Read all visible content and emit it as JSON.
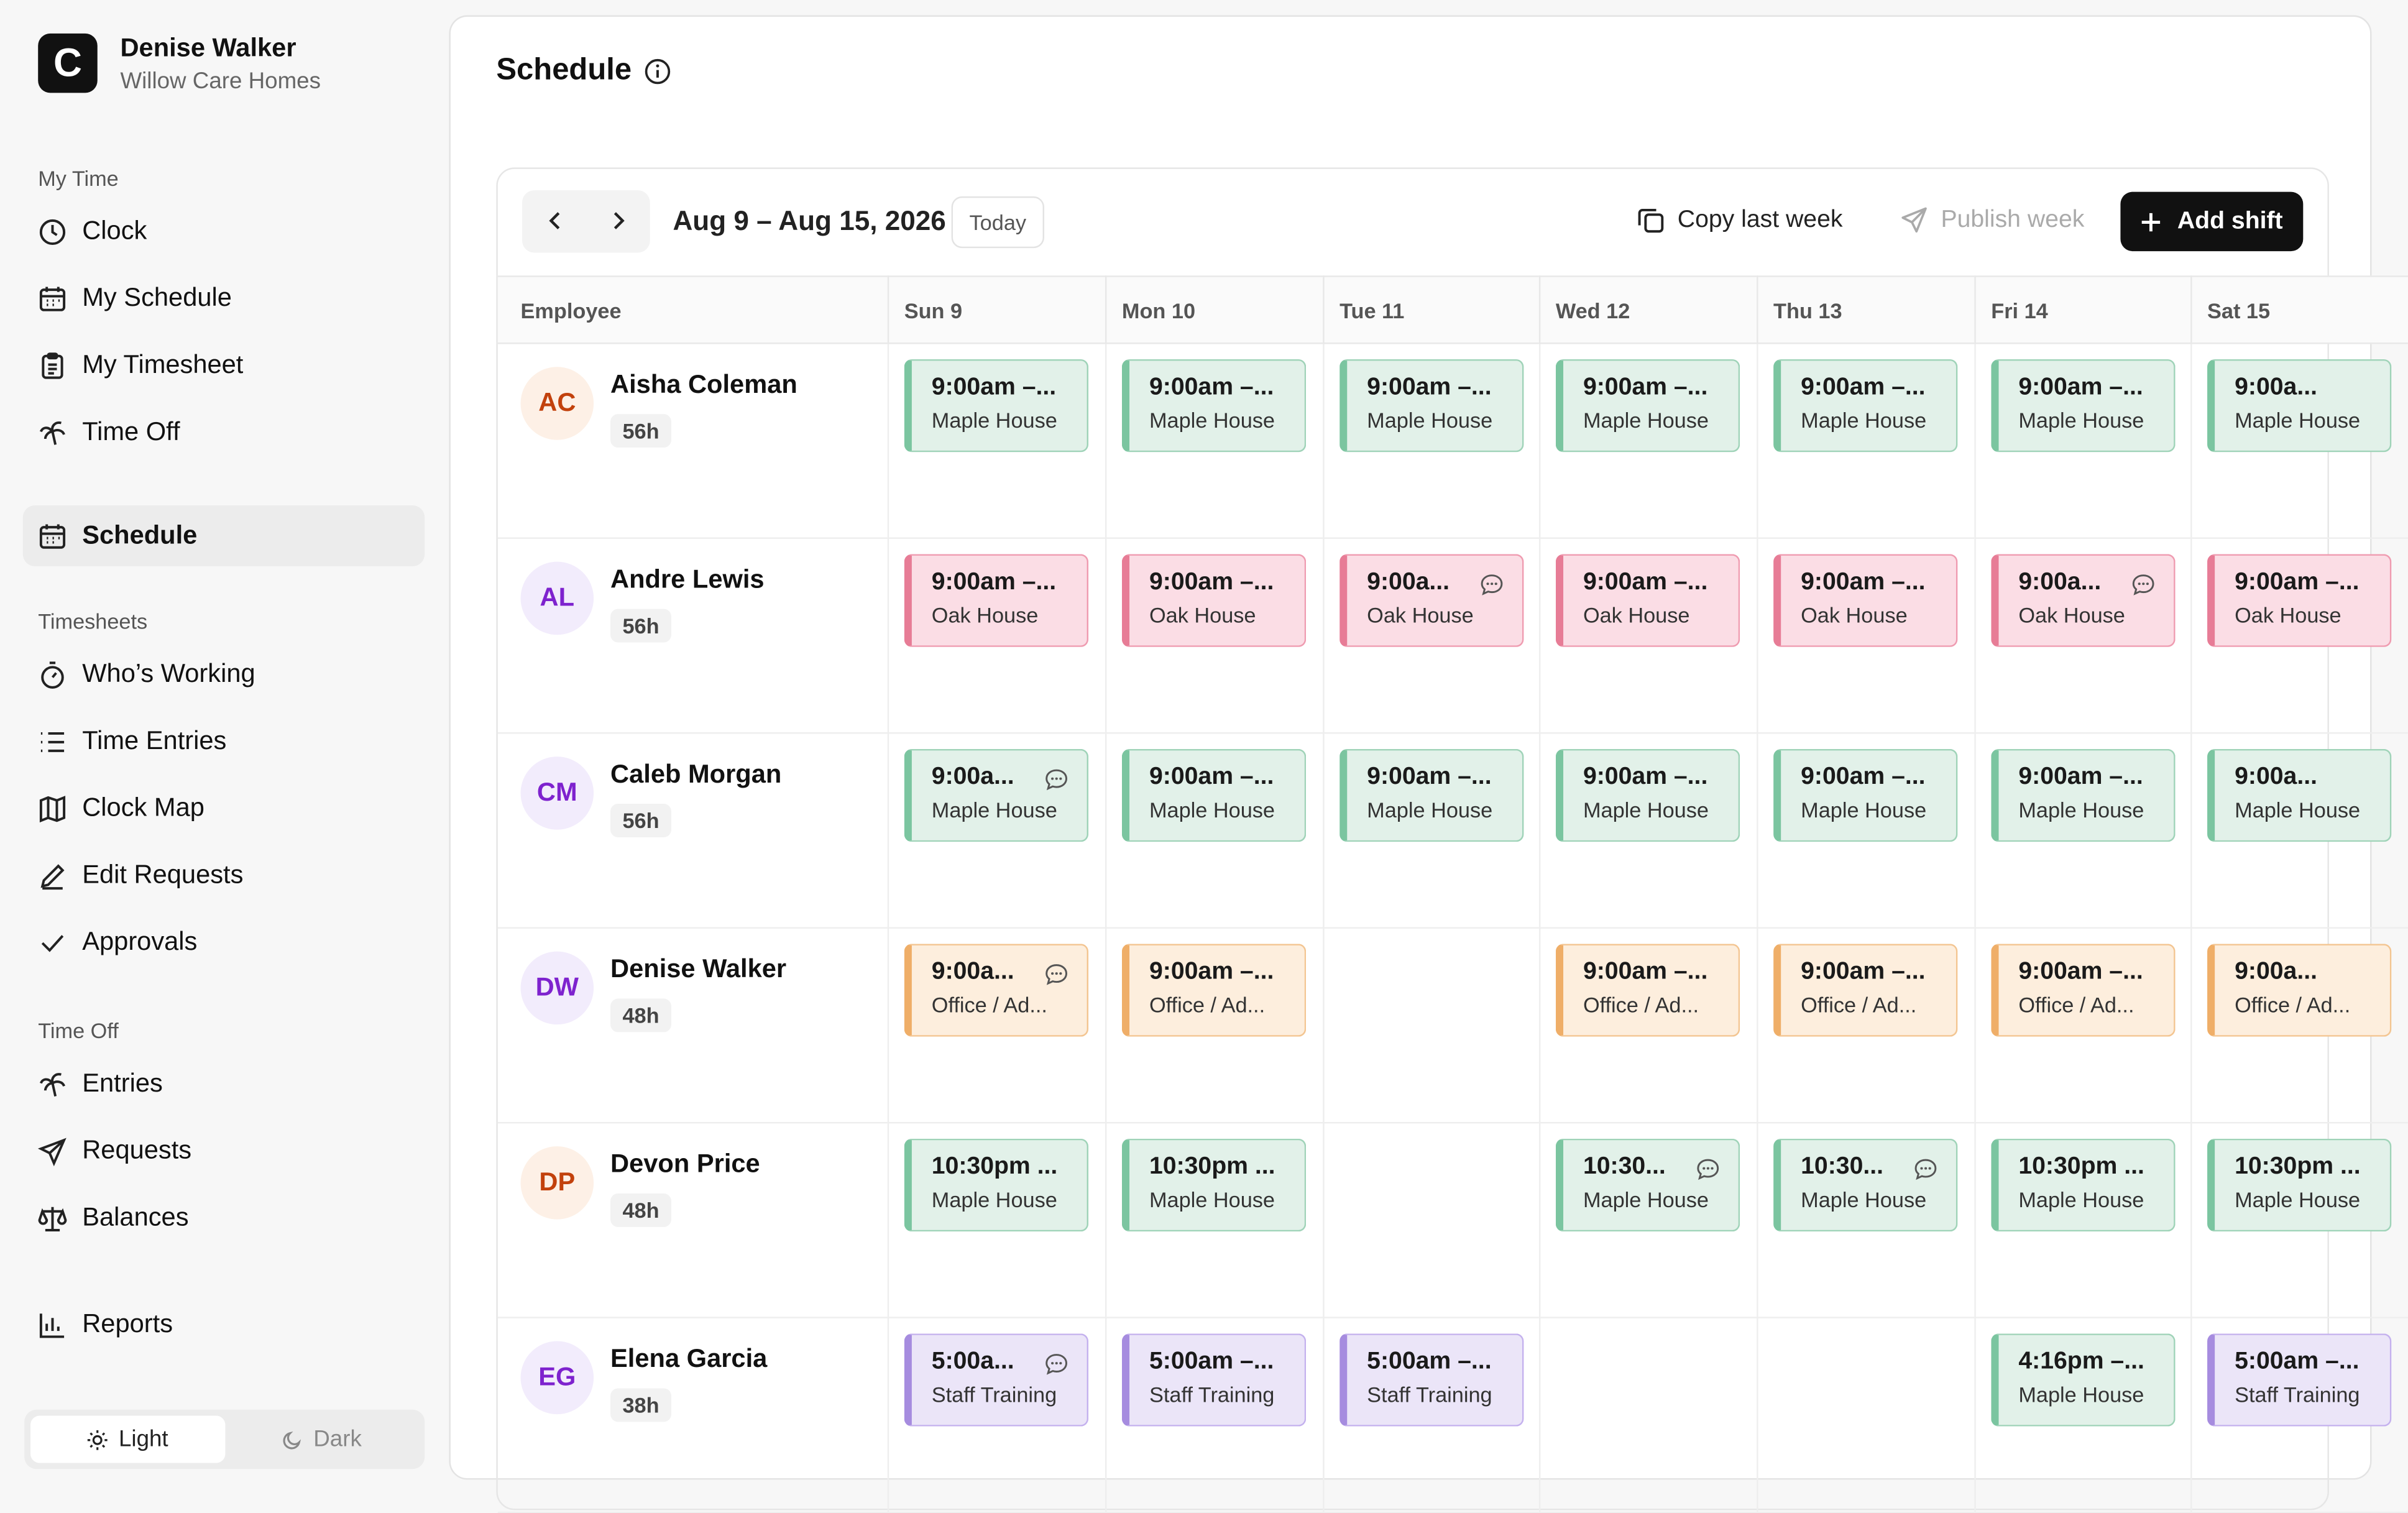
{
  "user": {
    "logo": "C",
    "name": "Denise Walker",
    "org": "Willow Care Homes"
  },
  "nav": [
    {
      "heading": "My Time",
      "items": [
        {
          "label": "Clock",
          "icon": "clock"
        },
        {
          "label": "My Schedule",
          "icon": "calendar"
        },
        {
          "label": "My Timesheet",
          "icon": "clipboard"
        },
        {
          "label": "Time Off",
          "icon": "palm"
        }
      ]
    },
    {
      "items": [
        {
          "label": "Schedule",
          "icon": "calendar",
          "active": true
        }
      ]
    },
    {
      "heading": "Timesheets",
      "items": [
        {
          "label": "Who’s Working",
          "icon": "stopwatch"
        },
        {
          "label": "Time Entries",
          "icon": "list"
        },
        {
          "label": "Clock Map",
          "icon": "map"
        },
        {
          "label": "Edit Requests",
          "icon": "pen"
        },
        {
          "label": "Approvals",
          "icon": "check"
        }
      ]
    },
    {
      "heading": "Time Off",
      "items": [
        {
          "label": "Entries",
          "icon": "palm"
        },
        {
          "label": "Requests",
          "icon": "send"
        },
        {
          "label": "Balances",
          "icon": "scale"
        }
      ]
    },
    {
      "items": [
        {
          "label": "Reports",
          "icon": "chart"
        }
      ]
    }
  ],
  "theme": {
    "options": [
      "Light",
      "Dark"
    ],
    "active": 0
  },
  "page": {
    "title": "Schedule"
  },
  "toolbar": {
    "range": "Aug 9 – Aug 15, 2026",
    "today": "Today",
    "copy": "Copy last week",
    "publish": "Publish week",
    "add": "Add shift"
  },
  "table": {
    "columns": [
      "Employee",
      "Sun 9",
      "Mon 10",
      "Tue 11",
      "Wed 12",
      "Thu 13",
      "Fri 14",
      "Sat 15"
    ],
    "rows": [
      {
        "initials": "AC",
        "avatar": "orange",
        "name": "Aisha Coleman",
        "hours": "56h",
        "shifts": [
          {
            "time": "9:00am –...",
            "location": "Maple House",
            "color": "green"
          },
          {
            "time": "9:00am –...",
            "location": "Maple House",
            "color": "green"
          },
          {
            "time": "9:00am –...",
            "location": "Maple House",
            "color": "green"
          },
          {
            "time": "9:00am –...",
            "location": "Maple House",
            "color": "green"
          },
          {
            "time": "9:00am –...",
            "location": "Maple House",
            "color": "green"
          },
          {
            "time": "9:00am –...",
            "location": "Maple House",
            "color": "green"
          },
          {
            "time": "9:00a...",
            "location": "Maple House",
            "color": "green"
          }
        ]
      },
      {
        "initials": "AL",
        "avatar": "purple",
        "name": "Andre Lewis",
        "hours": "56h",
        "shifts": [
          {
            "time": "9:00am –...",
            "location": "Oak House",
            "color": "pink"
          },
          {
            "time": "9:00am –...",
            "location": "Oak House",
            "color": "pink"
          },
          {
            "time": "9:00a...",
            "location": "Oak House",
            "color": "pink",
            "note": true
          },
          {
            "time": "9:00am –...",
            "location": "Oak House",
            "color": "pink"
          },
          {
            "time": "9:00am –...",
            "location": "Oak House",
            "color": "pink"
          },
          {
            "time": "9:00a...",
            "location": "Oak House",
            "color": "pink",
            "note": true
          },
          {
            "time": "9:00am –...",
            "location": "Oak House",
            "color": "pink"
          }
        ]
      },
      {
        "initials": "CM",
        "avatar": "purple",
        "name": "Caleb Morgan",
        "hours": "56h",
        "shifts": [
          {
            "time": "9:00a...",
            "location": "Maple House",
            "color": "green",
            "note": true
          },
          {
            "time": "9:00am –...",
            "location": "Maple House",
            "color": "green"
          },
          {
            "time": "9:00am –...",
            "location": "Maple House",
            "color": "green"
          },
          {
            "time": "9:00am –...",
            "location": "Maple House",
            "color": "green"
          },
          {
            "time": "9:00am –...",
            "location": "Maple House",
            "color": "green"
          },
          {
            "time": "9:00am –...",
            "location": "Maple House",
            "color": "green"
          },
          {
            "time": "9:00a...",
            "location": "Maple House",
            "color": "green"
          }
        ]
      },
      {
        "initials": "DW",
        "avatar": "purple",
        "name": "Denise Walker",
        "hours": "48h",
        "shifts": [
          {
            "time": "9:00a...",
            "location": "Office / Ad...",
            "color": "orange",
            "note": true
          },
          {
            "time": "9:00am –...",
            "location": "Office / Ad...",
            "color": "orange"
          },
          null,
          {
            "time": "9:00am –...",
            "location": "Office / Ad...",
            "color": "orange"
          },
          {
            "time": "9:00am –...",
            "location": "Office / Ad...",
            "color": "orange"
          },
          {
            "time": "9:00am –...",
            "location": "Office / Ad...",
            "color": "orange"
          },
          {
            "time": "9:00a...",
            "location": "Office / Ad...",
            "color": "orange"
          }
        ]
      },
      {
        "initials": "DP",
        "avatar": "orange",
        "name": "Devon Price",
        "hours": "48h",
        "shifts": [
          {
            "time": "10:30pm ...",
            "location": "Maple House",
            "color": "green"
          },
          {
            "time": "10:30pm ...",
            "location": "Maple House",
            "color": "green"
          },
          null,
          {
            "time": "10:30...",
            "location": "Maple House",
            "color": "green",
            "note": true
          },
          {
            "time": "10:30...",
            "location": "Maple House",
            "color": "green",
            "note": true
          },
          {
            "time": "10:30pm ...",
            "location": "Maple House",
            "color": "green"
          },
          {
            "time": "10:30pm ...",
            "location": "Maple House",
            "color": "green"
          }
        ]
      },
      {
        "initials": "EG",
        "avatar": "purple",
        "name": "Elena Garcia",
        "hours": "38h",
        "shifts": [
          {
            "time": "5:00a...",
            "location": "Staff Training",
            "color": "purple",
            "note": true
          },
          {
            "time": "5:00am –...",
            "location": "Staff Training",
            "color": "purple"
          },
          {
            "time": "5:00am –...",
            "location": "Staff Training",
            "color": "purple"
          },
          null,
          null,
          {
            "time": "4:16pm –...",
            "location": "Maple House",
            "color": "green"
          },
          {
            "time": "5:00am –...",
            "location": "Staff Training",
            "color": "purple"
          }
        ]
      }
    ]
  }
}
